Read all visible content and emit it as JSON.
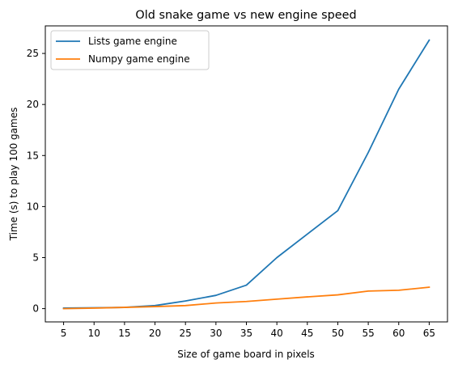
{
  "chart_data": {
    "type": "line",
    "title": "Old snake game vs new engine speed",
    "xlabel": "Size of game board in pixels",
    "ylabel": "Time (s) to play 100 games",
    "x": [
      5,
      10,
      15,
      20,
      25,
      30,
      35,
      40,
      45,
      50,
      55,
      60,
      65
    ],
    "xticks": [
      "5",
      "10",
      "15",
      "20",
      "25",
      "30",
      "35",
      "40",
      "45",
      "50",
      "55",
      "60",
      "65"
    ],
    "yticks": [
      "0",
      "5",
      "10",
      "15",
      "20",
      "25"
    ],
    "xlim": [
      2,
      68
    ],
    "ylim": [
      -1.3,
      27.7
    ],
    "grid": false,
    "legend_position": "top-left",
    "series": [
      {
        "name": "Lists game engine",
        "color": "#1f77b4",
        "values": [
          0.05,
          0.08,
          0.12,
          0.3,
          0.75,
          1.3,
          2.3,
          5.0,
          7.3,
          9.6,
          15.3,
          21.5,
          26.3
        ]
      },
      {
        "name": "Numpy game engine",
        "color": "#ff7f0e",
        "values": [
          0.0,
          0.05,
          0.12,
          0.2,
          0.3,
          0.55,
          0.7,
          0.93,
          1.15,
          1.35,
          1.72,
          1.8,
          2.1
        ]
      }
    ]
  }
}
